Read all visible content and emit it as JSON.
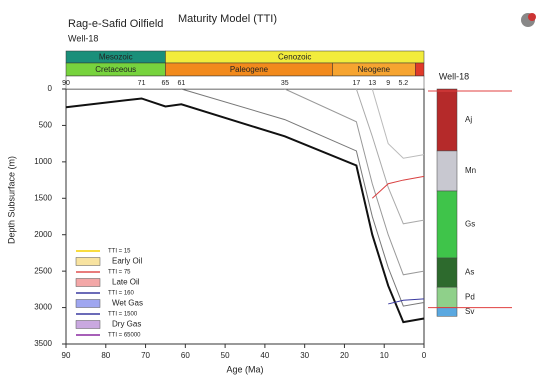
{
  "chart_data": {
    "type": "line",
    "title": "Rag-e-Safid Oilfield",
    "subtitle": "Maturity Model (TTI)",
    "well": "Well-18",
    "x_label": "Age (Ma)",
    "y_label": "Depth Subsurface (m)",
    "xlim": [
      90,
      0
    ],
    "ylim": [
      0,
      3500
    ],
    "xticks": [
      90,
      80,
      70,
      60,
      50,
      40,
      30,
      20,
      10,
      0
    ],
    "yticks": [
      0,
      500,
      1000,
      1500,
      2000,
      2500,
      3000,
      3500
    ],
    "eras": [
      {
        "name": "Mesozoic",
        "start": 90,
        "end": 65,
        "color": "#1a8f7a"
      },
      {
        "name": "Cenozoic",
        "start": 65,
        "end": 0,
        "color": "#f2ec3c"
      }
    ],
    "periods": [
      {
        "name": "Cretaceous",
        "start": 90,
        "end": 65,
        "color": "#77d33d"
      },
      {
        "name": "Paleogene",
        "start": 65,
        "end": 23,
        "color": "#f28a1c"
      },
      {
        "name": "Neogene",
        "start": 23,
        "end": 2.2,
        "color": "#f6a430"
      }
    ],
    "age_labels": [
      90,
      71,
      65,
      61,
      35,
      17,
      13,
      9,
      5.2
    ],
    "x": [
      90,
      71,
      65,
      61,
      35,
      17,
      13,
      9,
      5.2,
      0
    ],
    "burial_lines": [
      {
        "color": "#111111",
        "values": [
          250,
          130,
          240,
          210,
          650,
          1050,
          2000,
          2700,
          3200,
          3150
        ]
      },
      {
        "color": "#777777",
        "values": [
          null,
          null,
          null,
          0,
          420,
          850,
          1750,
          2450,
          2980,
          2930
        ]
      },
      {
        "color": "#999999",
        "values": [
          null,
          null,
          null,
          null,
          0,
          450,
          1300,
          2000,
          2550,
          2500
        ]
      },
      {
        "color": "#aaaaaa",
        "values": [
          null,
          null,
          null,
          null,
          null,
          0,
          650,
          1350,
          1850,
          1800
        ]
      },
      {
        "color": "#bbbbbb",
        "values": [
          null,
          null,
          null,
          null,
          null,
          null,
          0,
          750,
          950,
          900
        ]
      }
    ],
    "tti_lines": [
      {
        "color": "#d94040",
        "x": [
          13,
          9,
          5.2,
          0
        ],
        "values": [
          1500,
          1300,
          1250,
          1200
        ]
      },
      {
        "color": "#3a3aa0",
        "x": [
          9,
          5.2,
          0
        ],
        "values": [
          2950,
          2900,
          2880
        ]
      }
    ],
    "legend": [
      {
        "name": "TTI = 15",
        "color": "#f5d000",
        "style": "line"
      },
      {
        "name": "Early Oil",
        "color": "#f8e3a0",
        "style": "fill"
      },
      {
        "name": "TTI = 75",
        "color": "#e05050",
        "style": "line"
      },
      {
        "name": "Late Oil",
        "color": "#f3a7a7",
        "style": "fill"
      },
      {
        "name": "TTI = 160",
        "color": "#3a3aa0",
        "style": "line"
      },
      {
        "name": "Wet Gas",
        "color": "#9fa6f0",
        "style": "fill"
      },
      {
        "name": "TTI = 1500",
        "color": "#3a3aa0",
        "style": "line"
      },
      {
        "name": "Dry Gas",
        "color": "#c9a8e0",
        "style": "fill"
      },
      {
        "name": "TTI = 65000",
        "color": "#8a2aa0",
        "style": "line"
      }
    ],
    "lithology": [
      {
        "name": "Aj",
        "top": 0,
        "bottom": 850,
        "color": "#b52a2a"
      },
      {
        "name": "Mn",
        "top": 850,
        "bottom": 1400,
        "color": "#c8c8d0"
      },
      {
        "name": "Gs",
        "top": 1400,
        "bottom": 2320,
        "color": "#3fc44a"
      },
      {
        "name": "As",
        "top": 2320,
        "bottom": 2720,
        "color": "#2d6a2d"
      },
      {
        "name": "Pd",
        "top": 2720,
        "bottom": 3000,
        "color": "#8fd08a"
      },
      {
        "name": "Sv",
        "top": 3000,
        "bottom": 3120,
        "color": "#5aa8e0"
      }
    ]
  }
}
